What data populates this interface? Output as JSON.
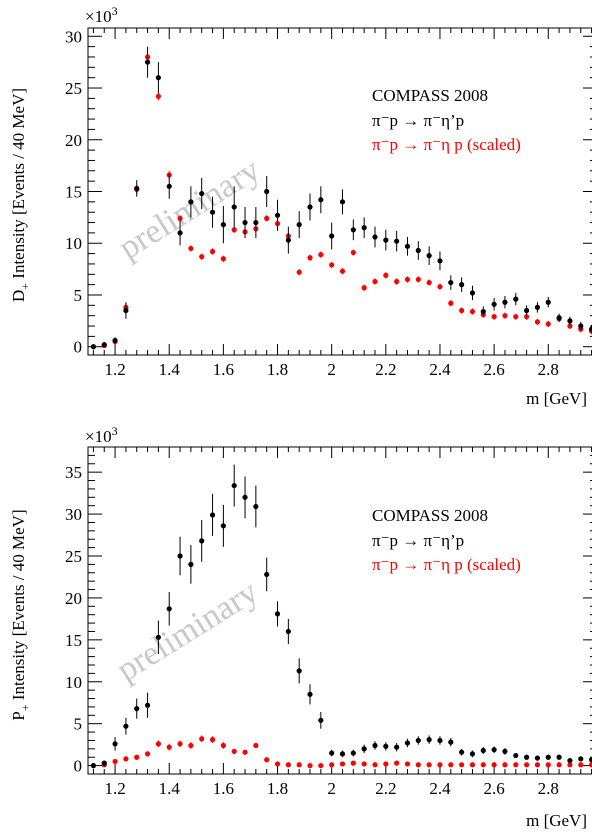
{
  "colors": {
    "series1": "#000000",
    "series2": "#ff0000",
    "watermark": "#c8c8c8"
  },
  "watermark": "preliminary",
  "chart_data": [
    {
      "type": "scatter",
      "title": "",
      "xlabel": "m [GeV]",
      "ylabel_main": "D",
      "ylabel_sub": "+",
      "ylabel_rest": " Intensity [Events / 40 MeV]",
      "multiplier": "×10",
      "multiplier_exp": "3",
      "xlim": [
        1.1,
        2.98
      ],
      "ylim": [
        -0.8,
        30.8
      ],
      "xticks": [
        "1.2",
        "1.4",
        "1.6",
        "1.8",
        "2",
        "2.2",
        "2.4",
        "2.6",
        "2.8"
      ],
      "yticks": [
        "0",
        "5",
        "10",
        "15",
        "20",
        "25",
        "30"
      ],
      "grid": false,
      "legend_title": "COMPASS 2008",
      "legend_placement": "top-right",
      "series": [
        {
          "name": "π⁻p → π⁻η’p",
          "color": "#000000",
          "x": [
            1.12,
            1.16,
            1.2,
            1.24,
            1.28,
            1.32,
            1.36,
            1.4,
            1.44,
            1.48,
            1.52,
            1.56,
            1.6,
            1.64,
            1.68,
            1.72,
            1.76,
            1.8,
            1.84,
            1.88,
            1.92,
            1.96,
            2.0,
            2.04,
            2.08,
            2.12,
            2.16,
            2.2,
            2.24,
            2.28,
            2.32,
            2.36,
            2.4,
            2.44,
            2.48,
            2.52,
            2.56,
            2.6,
            2.64,
            2.68,
            2.72,
            2.76,
            2.8,
            2.84,
            2.88,
            2.92,
            2.96
          ],
          "y": [
            0,
            0.2,
            0.6,
            3.5,
            15.3,
            27.5,
            26.0,
            15.5,
            11.0,
            14.0,
            14.8,
            13.0,
            11.8,
            13.5,
            12.0,
            12.0,
            15.0,
            12.7,
            10.3,
            11.8,
            13.5,
            14.2,
            10.7,
            14.0,
            11.3,
            11.5,
            10.6,
            10.3,
            10.2,
            9.7,
            9.3,
            8.8,
            8.3,
            6.2,
            6.0,
            5.2,
            3.4,
            4.1,
            4.3,
            4.6,
            3.5,
            3.8,
            4.3,
            2.8,
            2.5,
            2.0,
            1.7
          ],
          "err": [
            0.1,
            0.1,
            0.3,
            0.8,
            0.8,
            1.5,
            1.5,
            1.2,
            1.2,
            1.5,
            1.5,
            1.5,
            1.8,
            2.0,
            1.5,
            1.5,
            1.5,
            1.5,
            1.3,
            1.3,
            1.3,
            1.3,
            1.3,
            1.2,
            1.0,
            1.0,
            1.0,
            1.0,
            1.0,
            0.9,
            0.9,
            0.9,
            0.9,
            0.7,
            0.7,
            0.7,
            0.5,
            0.6,
            0.6,
            0.6,
            0.5,
            0.5,
            0.5,
            0.4,
            0.4,
            0.4,
            0.4
          ]
        },
        {
          "name": "π⁻p → π⁻η p (scaled)",
          "color": "#ff0000",
          "x": [
            1.12,
            1.16,
            1.2,
            1.24,
            1.28,
            1.32,
            1.36,
            1.4,
            1.44,
            1.48,
            1.52,
            1.56,
            1.6,
            1.64,
            1.68,
            1.72,
            1.76,
            1.8,
            1.84,
            1.88,
            1.92,
            1.96,
            2.0,
            2.04,
            2.08,
            2.12,
            2.16,
            2.2,
            2.24,
            2.28,
            2.32,
            2.36,
            2.4,
            2.44,
            2.48,
            2.52,
            2.56,
            2.6,
            2.64,
            2.68,
            2.72,
            2.76,
            2.8,
            2.84,
            2.88,
            2.92,
            2.96
          ],
          "y": [
            0,
            0.1,
            0.5,
            3.8,
            15.2,
            28.0,
            24.2,
            16.6,
            12.4,
            9.5,
            8.7,
            9.2,
            8.5,
            11.3,
            11.1,
            11.4,
            12.4,
            11.9,
            10.7,
            7.2,
            8.6,
            8.9,
            7.9,
            7.3,
            9.1,
            5.7,
            6.3,
            6.9,
            6.3,
            6.5,
            6.5,
            6.2,
            5.8,
            4.2,
            3.5,
            3.4,
            3.1,
            2.9,
            3.0,
            2.9,
            2.9,
            2.4,
            2.2,
            2.7,
            2.0,
            1.7,
            1.5
          ],
          "err": [
            0.1,
            0.1,
            0.2,
            0.4,
            0.4,
            0.4,
            0.4,
            0.4,
            0.3,
            0.3,
            0.3,
            0.3,
            0.3,
            0.3,
            0.3,
            0.3,
            0.3,
            0.3,
            0.3,
            0.3,
            0.3,
            0.3,
            0.3,
            0.3,
            0.3,
            0.3,
            0.3,
            0.3,
            0.3,
            0.3,
            0.3,
            0.3,
            0.3,
            0.3,
            0.3,
            0.3,
            0.3,
            0.3,
            0.3,
            0.3,
            0.3,
            0.3,
            0.3,
            0.3,
            0.3,
            0.3,
            0.3
          ]
        }
      ]
    },
    {
      "type": "scatter",
      "title": "",
      "xlabel": "m [GeV]",
      "ylabel_main": "P",
      "ylabel_sub": "+",
      "ylabel_rest": " Intensity [Events / 40 MeV]",
      "multiplier": "×10",
      "multiplier_exp": "3",
      "xlim": [
        1.1,
        2.98
      ],
      "ylim": [
        -1.0,
        38.0
      ],
      "xticks": [
        "1.2",
        "1.4",
        "1.6",
        "1.8",
        "2",
        "2.2",
        "2.4",
        "2.6",
        "2.8"
      ],
      "yticks": [
        "0",
        "5",
        "10",
        "15",
        "20",
        "25",
        "30",
        "35"
      ],
      "grid": false,
      "legend_title": "COMPASS 2008",
      "legend_placement": "top-right",
      "series": [
        {
          "name": "π⁻p → π⁻η’p",
          "color": "#000000",
          "x": [
            1.12,
            1.16,
            1.2,
            1.24,
            1.28,
            1.32,
            1.36,
            1.4,
            1.44,
            1.48,
            1.52,
            1.56,
            1.6,
            1.64,
            1.68,
            1.72,
            1.76,
            1.8,
            1.84,
            1.88,
            1.92,
            1.96,
            2.0,
            2.04,
            2.08,
            2.12,
            2.16,
            2.2,
            2.24,
            2.28,
            2.32,
            2.36,
            2.4,
            2.44,
            2.48,
            2.52,
            2.56,
            2.6,
            2.64,
            2.68,
            2.72,
            2.76,
            2.8,
            2.84,
            2.88,
            2.92,
            2.96
          ],
          "y": [
            0,
            0.3,
            2.6,
            4.7,
            6.8,
            7.2,
            15.3,
            18.7,
            25.0,
            24.0,
            26.8,
            29.9,
            28.6,
            33.4,
            32.0,
            30.9,
            22.8,
            18.1,
            16.0,
            11.3,
            8.5,
            5.4,
            1.5,
            1.4,
            1.5,
            2.0,
            2.4,
            2.3,
            2.2,
            2.7,
            3.0,
            3.1,
            3.0,
            2.8,
            1.6,
            1.4,
            1.8,
            1.9,
            1.7,
            1.2,
            1.0,
            0.9,
            1.0,
            1.0,
            0.6,
            0.8,
            0.7
          ],
          "err": [
            0.1,
            0.3,
            0.8,
            1.0,
            1.2,
            1.5,
            2.0,
            2.0,
            2.3,
            2.3,
            2.5,
            2.5,
            2.5,
            2.5,
            2.5,
            2.5,
            2.0,
            1.5,
            1.5,
            1.5,
            1.2,
            1.0,
            0.4,
            0.4,
            0.4,
            0.5,
            0.5,
            0.5,
            0.5,
            0.5,
            0.5,
            0.5,
            0.5,
            0.5,
            0.4,
            0.4,
            0.4,
            0.4,
            0.4,
            0.3,
            0.3,
            0.3,
            0.3,
            0.3,
            0.3,
            0.3,
            0.3
          ]
        },
        {
          "name": "π⁻p → π⁻η p (scaled)",
          "color": "#ff0000",
          "x": [
            1.12,
            1.16,
            1.2,
            1.24,
            1.28,
            1.32,
            1.36,
            1.4,
            1.44,
            1.48,
            1.52,
            1.56,
            1.6,
            1.64,
            1.68,
            1.72,
            1.76,
            1.8,
            1.84,
            1.88,
            1.92,
            1.96,
            2.0,
            2.04,
            2.08,
            2.12,
            2.16,
            2.2,
            2.24,
            2.28,
            2.32,
            2.36,
            2.4,
            2.44,
            2.48,
            2.52,
            2.56,
            2.6,
            2.64,
            2.68,
            2.72,
            2.76,
            2.8,
            2.84,
            2.88,
            2.92,
            2.96
          ],
          "y": [
            0,
            0.1,
            0.5,
            0.8,
            1.0,
            1.4,
            2.6,
            2.2,
            2.6,
            2.4,
            3.2,
            3.1,
            2.4,
            1.7,
            1.6,
            2.4,
            0.7,
            0.2,
            0.1,
            0.1,
            0.0,
            0.0,
            0.1,
            0.2,
            0.3,
            0.2,
            0.1,
            0.2,
            0.3,
            0.2,
            0.1,
            0.1,
            0.1,
            0.1,
            0.1,
            0.1,
            0.1,
            0.1,
            0.1,
            0.1,
            0.1,
            0.1,
            0.1,
            0.1,
            0.1,
            0.1,
            0.1
          ],
          "err": [
            0.1,
            0.1,
            0.2,
            0.3,
            0.3,
            0.3,
            0.4,
            0.4,
            0.4,
            0.4,
            0.4,
            0.4,
            0.4,
            0.3,
            0.3,
            0.3,
            0.2,
            0.1,
            0.1,
            0.1,
            0.1,
            0.1,
            0.1,
            0.1,
            0.1,
            0.1,
            0.1,
            0.1,
            0.1,
            0.1,
            0.1,
            0.1,
            0.1,
            0.1,
            0.1,
            0.1,
            0.1,
            0.1,
            0.1,
            0.1,
            0.1,
            0.1,
            0.1,
            0.1,
            0.1,
            0.1,
            0.1
          ]
        }
      ]
    }
  ]
}
